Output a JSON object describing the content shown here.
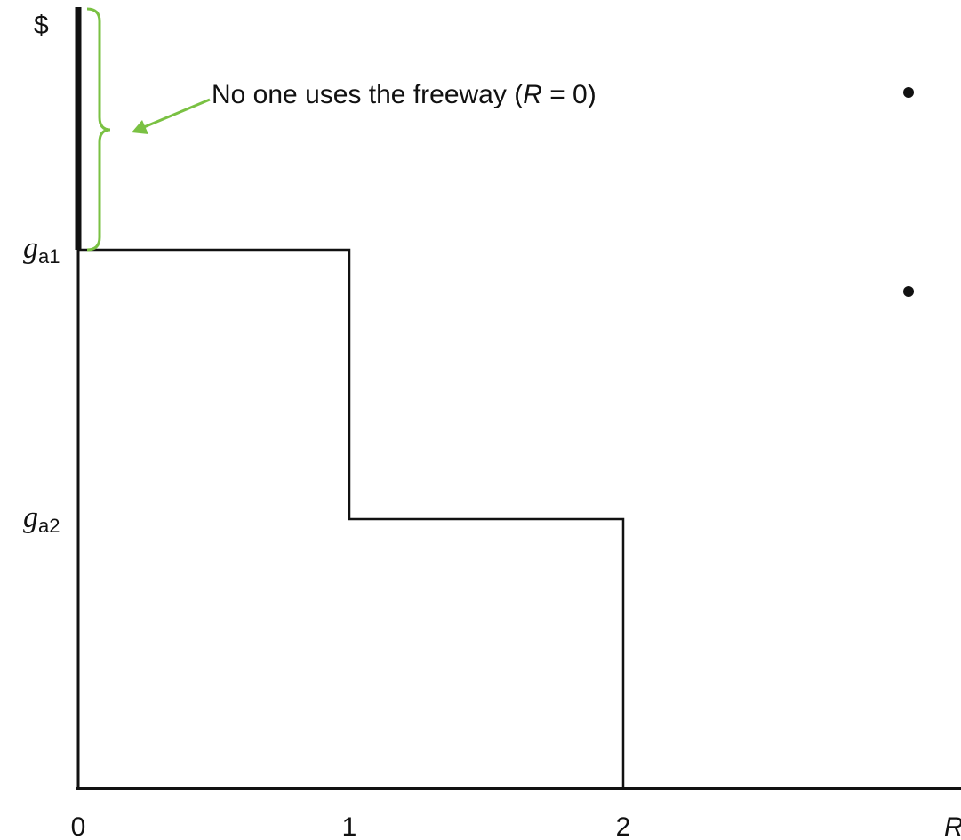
{
  "y_axis": {
    "label": "$",
    "levels": [
      {
        "symbol": "g",
        "subscript": "a1"
      },
      {
        "symbol": "g",
        "subscript": "a2"
      }
    ]
  },
  "x_axis": {
    "label": "R",
    "ticks": [
      "0",
      "1",
      "2"
    ]
  },
  "annotation": {
    "before": "No one uses the freeway (",
    "variable": "R",
    "after": " = 0)"
  }
}
